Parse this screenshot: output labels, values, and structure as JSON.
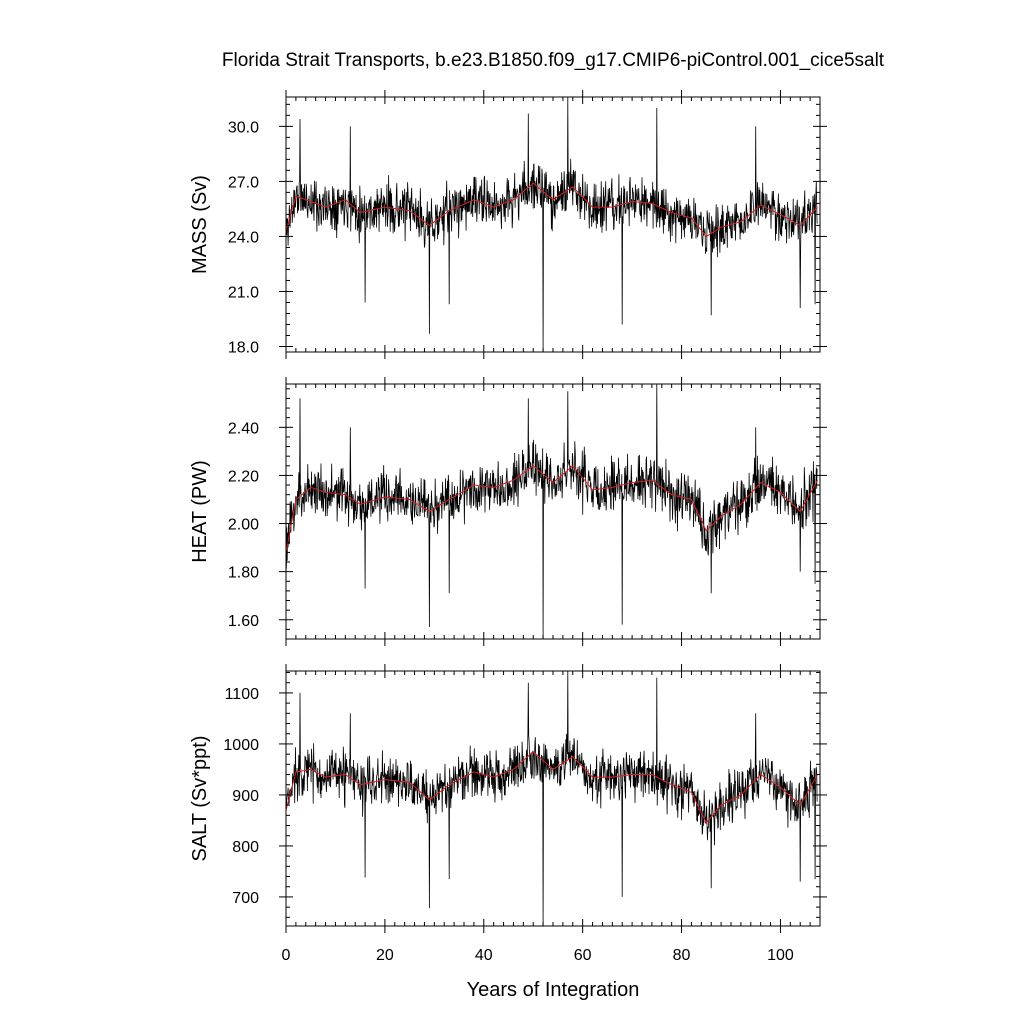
{
  "figure": {
    "title": "Florida Strait Transports, b.e23.B1850.f09_g17.CMIP6-piControl.001_cice5salt",
    "xlabel": "Years of Integration",
    "smooth_color": "#d62020",
    "raw_color": "#000000"
  },
  "chart_data": [
    {
      "type": "line",
      "ylabel": "MASS (Sv)",
      "xlim": [
        0,
        108
      ],
      "ylim": [
        17.7,
        31.6
      ],
      "xticks": [
        0,
        20,
        40,
        60,
        80,
        100
      ],
      "yticks": [
        18.0,
        21.0,
        24.0,
        27.0,
        30.0
      ],
      "ytick_labels": [
        "18.0",
        "21.0",
        "24.0",
        "27.0",
        "30.0"
      ],
      "ytick_decimals": 1,
      "minor_x_step": 2,
      "minor_y_step": 0.6,
      "show_xtick_labels": false,
      "mean": 25.4,
      "amplitude": 1.5,
      "seed": 11,
      "smooth_keypoints": [
        [
          0,
          24.3
        ],
        [
          2,
          26.2
        ],
        [
          5,
          25.9
        ],
        [
          8,
          25.6
        ],
        [
          12,
          26.0
        ],
        [
          15,
          25.3
        ],
        [
          20,
          25.6
        ],
        [
          25,
          25.4
        ],
        [
          29,
          24.6
        ],
        [
          33,
          25.4
        ],
        [
          38,
          26.0
        ],
        [
          42,
          25.6
        ],
        [
          46,
          26.0
        ],
        [
          50,
          26.9
        ],
        [
          54,
          26.0
        ],
        [
          58,
          26.7
        ],
        [
          62,
          25.6
        ],
        [
          66,
          25.6
        ],
        [
          70,
          25.9
        ],
        [
          74,
          25.8
        ],
        [
          78,
          25.3
        ],
        [
          82,
          25.0
        ],
        [
          85,
          24.0
        ],
        [
          88,
          24.5
        ],
        [
          92,
          24.8
        ],
        [
          96,
          25.7
        ],
        [
          100,
          25.2
        ],
        [
          104,
          24.6
        ],
        [
          107.5,
          25.6
        ]
      ],
      "spikes": [
        [
          2.8,
          30.4
        ],
        [
          13,
          30.0
        ],
        [
          16,
          20.4
        ],
        [
          29,
          18.7
        ],
        [
          33,
          20.3
        ],
        [
          49,
          30.7
        ],
        [
          52,
          17.7
        ],
        [
          57,
          31.6
        ],
        [
          68,
          19.2
        ],
        [
          75,
          31.0
        ],
        [
          86,
          19.7
        ],
        [
          95,
          30.0
        ],
        [
          104,
          20.1
        ],
        [
          107,
          20.3
        ]
      ]
    },
    {
      "type": "line",
      "ylabel": "HEAT (PW)",
      "xlim": [
        0,
        108
      ],
      "ylim": [
        1.52,
        2.58
      ],
      "xticks": [
        0,
        20,
        40,
        60,
        80,
        100
      ],
      "yticks": [
        1.6,
        1.8,
        2.0,
        2.2,
        2.4
      ],
      "ytick_labels": [
        "1.60",
        "1.80",
        "2.00",
        "2.20",
        "2.40"
      ],
      "ytick_decimals": 2,
      "minor_x_step": 2,
      "minor_y_step": 0.04,
      "show_xtick_labels": false,
      "mean": 2.12,
      "amplitude": 0.12,
      "seed": 23,
      "smooth_keypoints": [
        [
          0,
          1.88
        ],
        [
          2,
          2.1
        ],
        [
          5,
          2.15
        ],
        [
          8,
          2.13
        ],
        [
          12,
          2.12
        ],
        [
          15,
          2.08
        ],
        [
          20,
          2.11
        ],
        [
          25,
          2.1
        ],
        [
          29,
          2.05
        ],
        [
          33,
          2.1
        ],
        [
          38,
          2.16
        ],
        [
          42,
          2.15
        ],
        [
          46,
          2.18
        ],
        [
          50,
          2.24
        ],
        [
          54,
          2.17
        ],
        [
          58,
          2.24
        ],
        [
          62,
          2.14
        ],
        [
          66,
          2.15
        ],
        [
          70,
          2.17
        ],
        [
          74,
          2.18
        ],
        [
          78,
          2.12
        ],
        [
          82,
          2.1
        ],
        [
          85,
          1.97
        ],
        [
          88,
          2.03
        ],
        [
          92,
          2.08
        ],
        [
          96,
          2.17
        ],
        [
          100,
          2.13
        ],
        [
          104,
          2.05
        ],
        [
          107.5,
          2.18
        ]
      ],
      "spikes": [
        [
          2.8,
          2.52
        ],
        [
          13,
          2.4
        ],
        [
          16,
          1.73
        ],
        [
          29,
          1.57
        ],
        [
          33,
          1.71
        ],
        [
          49,
          2.52
        ],
        [
          52,
          1.52
        ],
        [
          57,
          2.55
        ],
        [
          68,
          1.58
        ],
        [
          75,
          2.58
        ],
        [
          86,
          1.71
        ],
        [
          95,
          2.4
        ],
        [
          104,
          1.8
        ],
        [
          107,
          1.75
        ]
      ]
    },
    {
      "type": "line",
      "ylabel": "SALT (Sv*ppt)",
      "xlim": [
        0,
        108
      ],
      "ylim": [
        643,
        1143
      ],
      "xticks": [
        0,
        20,
        40,
        60,
        80,
        100
      ],
      "xtick_labels": [
        "0",
        "20",
        "40",
        "60",
        "80",
        "100"
      ],
      "yticks": [
        700,
        800,
        900,
        1000,
        1100
      ],
      "ytick_labels": [
        "700",
        "800",
        "900",
        "1000",
        "1100"
      ],
      "ytick_decimals": 0,
      "minor_x_step": 2,
      "minor_y_step": 20,
      "show_xtick_labels": true,
      "mean": 925,
      "amplitude": 55,
      "seed": 37,
      "smooth_keypoints": [
        [
          0,
          870
        ],
        [
          2,
          945
        ],
        [
          5,
          950
        ],
        [
          8,
          935
        ],
        [
          12,
          940
        ],
        [
          15,
          920
        ],
        [
          20,
          930
        ],
        [
          25,
          925
        ],
        [
          29,
          890
        ],
        [
          33,
          920
        ],
        [
          38,
          945
        ],
        [
          42,
          935
        ],
        [
          46,
          950
        ],
        [
          50,
          985
        ],
        [
          54,
          950
        ],
        [
          58,
          975
        ],
        [
          62,
          935
        ],
        [
          66,
          935
        ],
        [
          70,
          940
        ],
        [
          74,
          940
        ],
        [
          78,
          920
        ],
        [
          82,
          905
        ],
        [
          85,
          845
        ],
        [
          88,
          880
        ],
        [
          92,
          900
        ],
        [
          96,
          940
        ],
        [
          100,
          915
        ],
        [
          104,
          880
        ],
        [
          107.5,
          940
        ]
      ],
      "spikes": [
        [
          2.8,
          1100
        ],
        [
          13,
          1060
        ],
        [
          16,
          738
        ],
        [
          29,
          678
        ],
        [
          33,
          735
        ],
        [
          49,
          1120
        ],
        [
          52,
          643
        ],
        [
          57,
          1143
        ],
        [
          68,
          700
        ],
        [
          75,
          1130
        ],
        [
          86,
          717
        ],
        [
          95,
          1060
        ],
        [
          104,
          730
        ],
        [
          107,
          735
        ]
      ]
    }
  ]
}
